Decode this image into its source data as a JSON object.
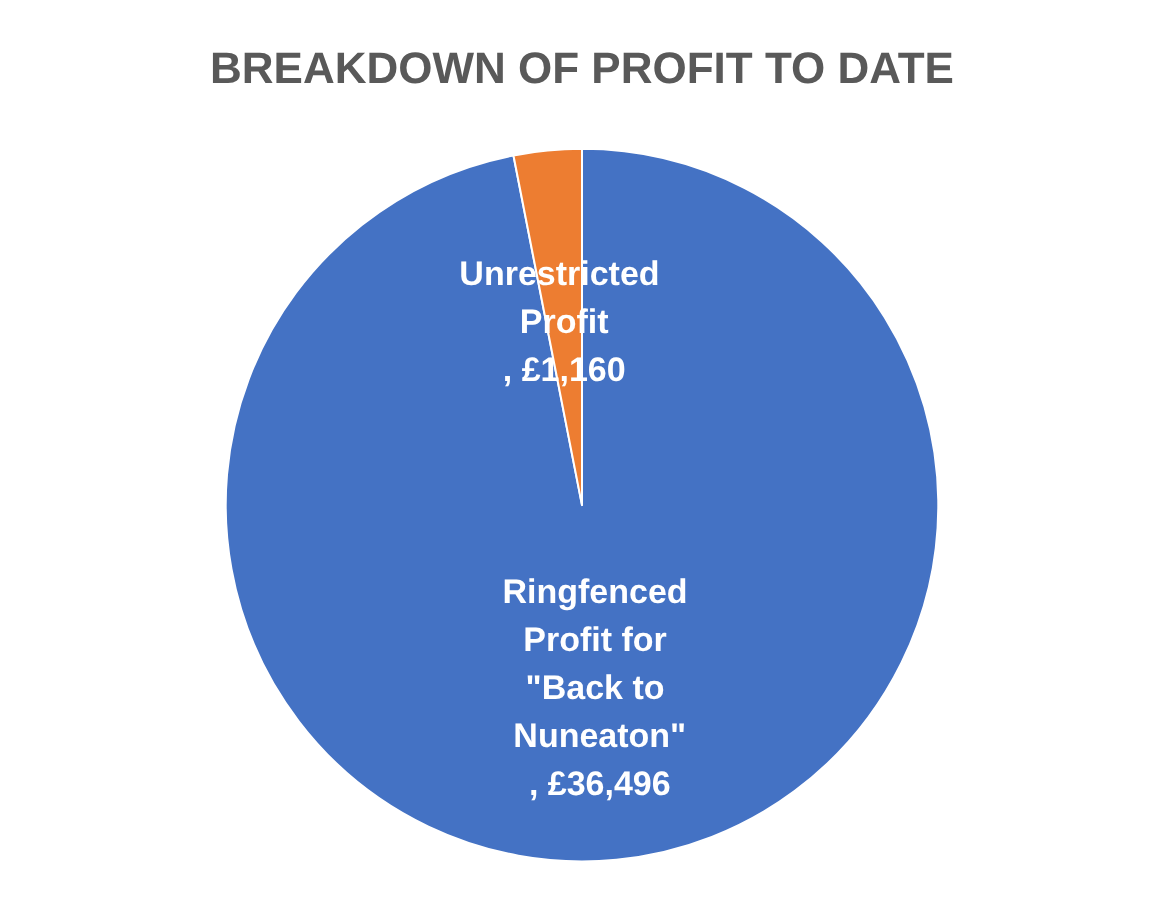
{
  "chart_data": {
    "type": "pie",
    "title": "BREAKDOWN OF PROFIT TO DATE",
    "categories": [
      "Ringfenced Profit for \"Back to Nuneaton\"",
      "Unrestricted Profit"
    ],
    "values": [
      36496,
      1160
    ],
    "colors": [
      "#4472c4",
      "#ed7d31"
    ],
    "value_labels": [
      ", £36,496",
      ", £1,160"
    ]
  }
}
